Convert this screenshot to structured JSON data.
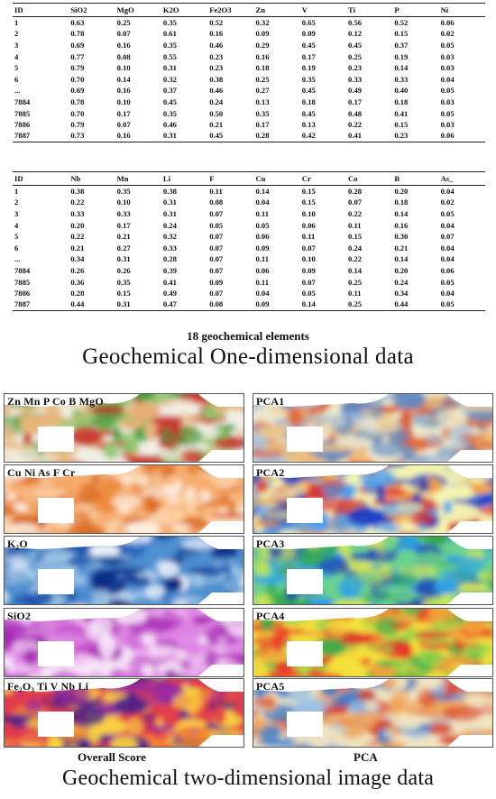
{
  "table1": {
    "columns": [
      "ID",
      "SiO2",
      "MgO",
      "K2O",
      "Fe2O3",
      "Zn",
      "V",
      "Ti",
      "P",
      "Ni"
    ],
    "rows": [
      [
        "1",
        "0.63",
        "0.25",
        "0.35",
        "0.52",
        "0.32",
        "0.65",
        "0.56",
        "0.52",
        "0.06"
      ],
      [
        "2",
        "0.78",
        "0.07",
        "0.61",
        "0.16",
        "0.09",
        "0.09",
        "0.12",
        "0.15",
        "0.02"
      ],
      [
        "3",
        "0.69",
        "0.16",
        "0.35",
        "0.46",
        "0.29",
        "0.45",
        "0.45",
        "0.37",
        "0.05"
      ],
      [
        "4",
        "0.77",
        "0.08",
        "0.55",
        "0.23",
        "0.16",
        "0.17",
        "0.25",
        "0.19",
        "0.03"
      ],
      [
        "5",
        "0.79",
        "0.10",
        "0.31",
        "0.23",
        "0.18",
        "0.19",
        "0.23",
        "0.14",
        "0.03"
      ],
      [
        "6",
        "0.70",
        "0.14",
        "0.32",
        "0.38",
        "0.25",
        "0.35",
        "0.33",
        "0.33",
        "0.04"
      ],
      [
        "...",
        "0.69",
        "0.16",
        "0.37",
        "0.46",
        "0.27",
        "0.45",
        "0.49",
        "0.40",
        "0.05"
      ],
      [
        "7884",
        "0.78",
        "0.10",
        "0.45",
        "0.24",
        "0.13",
        "0.18",
        "0.17",
        "0.18",
        "0.03"
      ],
      [
        "7885",
        "0.70",
        "0.17",
        "0.35",
        "0.50",
        "0.35",
        "0.45",
        "0.48",
        "0.41",
        "0.05"
      ],
      [
        "7886",
        "0.79",
        "0.07",
        "0.46",
        "0.21",
        "0.17",
        "0.13",
        "0.22",
        "0.15",
        "0.03"
      ],
      [
        "7887",
        "0.73",
        "0.16",
        "0.31",
        "0.45",
        "0.28",
        "0.42",
        "0.41",
        "0.23",
        "0.06"
      ]
    ]
  },
  "table2": {
    "columns": [
      "ID",
      "Nb",
      "Mn",
      "Li",
      "F",
      "Cu",
      "Cr",
      "Co",
      "B",
      "As_"
    ],
    "rows": [
      [
        "1",
        "0.38",
        "0.35",
        "0.38",
        "0.11",
        "0.14",
        "0.15",
        "0.28",
        "0.20",
        "0.04"
      ],
      [
        "2",
        "0.22",
        "0.10",
        "0.31",
        "0.08",
        "0.04",
        "0.15",
        "0.07",
        "0.18",
        "0.02"
      ],
      [
        "3",
        "0.33",
        "0.33",
        "0.31",
        "0.07",
        "0.11",
        "0.10",
        "0.22",
        "0.14",
        "0.05"
      ],
      [
        "4",
        "0.20",
        "0.17",
        "0.24",
        "0.05",
        "0.05",
        "0.06",
        "0.11",
        "0.16",
        "0.04"
      ],
      [
        "5",
        "0.22",
        "0.21",
        "0.32",
        "0.07",
        "0.06",
        "0.11",
        "0.15",
        "0.30",
        "0.07"
      ],
      [
        "6",
        "0.21",
        "0.27",
        "0.33",
        "0.07",
        "0.09",
        "0.07",
        "0.24",
        "0.21",
        "0.04"
      ],
      [
        "...",
        "0.34",
        "0.31",
        "0.28",
        "0.07",
        "0.11",
        "0.10",
        "0.22",
        "0.14",
        "0.04"
      ],
      [
        "7884",
        "0.26",
        "0.26",
        "0.39",
        "0.07",
        "0.06",
        "0.09",
        "0.14",
        "0.20",
        "0.06"
      ],
      [
        "7885",
        "0.36",
        "0.35",
        "0.41",
        "0.09",
        "0.11",
        "0.07",
        "0.25",
        "0.24",
        "0.05"
      ],
      [
        "7886",
        "0.28",
        "0.15",
        "0.49",
        "0.07",
        "0.04",
        "0.05",
        "0.11",
        "0.34",
        "0.04"
      ],
      [
        "7887",
        "0.44",
        "0.31",
        "0.47",
        "0.08",
        "0.09",
        "0.14",
        "0.25",
        "0.44",
        "0.05"
      ]
    ]
  },
  "captions": {
    "elements": "18 geochemical elements",
    "one_dim": "Geochemical One-dimensional data",
    "overall": "Overall Score",
    "pca": "PCA",
    "two_dim": "Geochemical two-dimensional image data"
  },
  "maps": {
    "left": [
      {
        "title": "Zn Mn P Co B MgO",
        "colors": [
          "#c8322a",
          "#e8b57c",
          "#f2f0e6",
          "#8cc46a",
          "#3f9a3a"
        ]
      },
      {
        "title": "Cu Ni As F Cr",
        "colors": [
          "#fdf1e2",
          "#fbd3a8",
          "#f6ad6e",
          "#ee8a3c",
          "#d9661c"
        ]
      },
      {
        "title": "K₂O",
        "colors": [
          "#e8f1fb",
          "#9cc6e6",
          "#4d8fd0",
          "#1d56b0",
          "#0a2c86"
        ]
      },
      {
        "title": "SiO2",
        "colors": [
          "#f9eaf9",
          "#eebaf0",
          "#dd84e2",
          "#c454cf",
          "#a52bb3"
        ]
      },
      {
        "title": "Fe₂O₃  Ti  V Nb Li",
        "colors": [
          "#3f1f8a",
          "#9a2a9e",
          "#e23b4a",
          "#f58a2a",
          "#fbd23f"
        ]
      }
    ],
    "right": [
      {
        "title": "PCA1",
        "colors": [
          "#5a86c2",
          "#a8c0dc",
          "#ece8cc",
          "#f1c47c",
          "#e0602e"
        ]
      },
      {
        "title": "PCA2",
        "colors": [
          "#1237c8",
          "#4aa0f0",
          "#f4f4b0",
          "#f4a23a",
          "#e0302a"
        ]
      },
      {
        "title": "PCA3",
        "colors": [
          "#1a46b8",
          "#2ea0e8",
          "#6cd28c",
          "#36a84a",
          "#d6e84a"
        ]
      },
      {
        "title": "PCA4",
        "colors": [
          "#e8302a",
          "#f4a33a",
          "#f4e03a",
          "#9ad84a",
          "#3aa84a"
        ]
      },
      {
        "title": "PCA5",
        "colors": [
          "#3a7ac8",
          "#9cc2e4",
          "#f0e4c0",
          "#f0a45a",
          "#d8402a"
        ]
      }
    ]
  }
}
